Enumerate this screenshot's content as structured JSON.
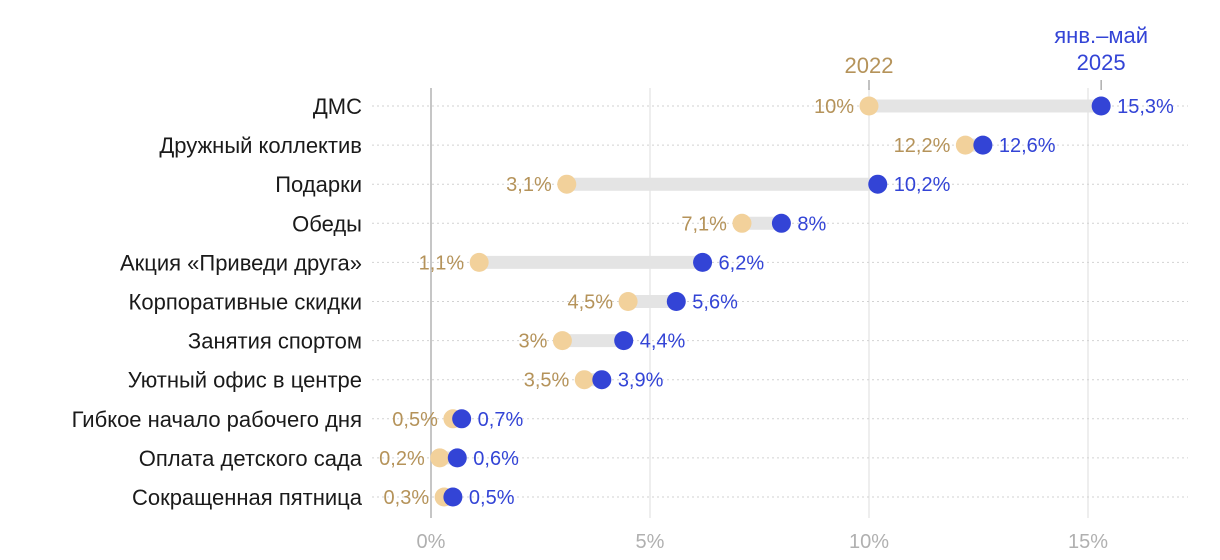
{
  "chart_data": {
    "type": "dumbbell",
    "title": "",
    "xlabel": "",
    "ylabel": "",
    "xlim": [
      0,
      17.5
    ],
    "x_ticks": [
      {
        "value": 0,
        "label": "0%"
      },
      {
        "value": 5,
        "label": "5%"
      },
      {
        "value": 10,
        "label": "10%"
      },
      {
        "value": 15,
        "label": "15%"
      }
    ],
    "grid": true,
    "categories": [
      "ДМС",
      "Дружный коллектив",
      "Подарки",
      "Обеды",
      "Акция «Приведи друга»",
      "Корпоративные скидки",
      "Занятия спортом",
      "Уютный офис в центре",
      "Гибкое начало рабочего дня",
      "Оплата детского сада",
      "Сокращенная пятница"
    ],
    "series": [
      {
        "name": "2022",
        "color": "#f2d19b",
        "label_color": "#b5935a",
        "values": [
          10,
          12.2,
          3.1,
          7.1,
          1.1,
          4.5,
          3,
          3.5,
          0.5,
          0.2,
          0.3
        ],
        "labels": [
          "10%",
          "12,2%",
          "3,1%",
          "7,1%",
          "1,1%",
          "4,5%",
          "3%",
          "3,5%",
          "0,5%",
          "0,2%",
          "0,3%"
        ]
      },
      {
        "name_lines": [
          "янв.–май",
          "2025"
        ],
        "color": "#3344d6",
        "label_color": "#3344d6",
        "values": [
          15.3,
          12.6,
          10.2,
          8,
          6.2,
          5.6,
          4.4,
          3.9,
          0.7,
          0.6,
          0.5
        ],
        "labels": [
          "15,3%",
          "12,6%",
          "10,2%",
          "8%",
          "6,2%",
          "5,6%",
          "4,4%",
          "3,9%",
          "0,7%",
          "0,6%",
          "0,5%"
        ]
      }
    ],
    "series_labels_position": "above first row"
  }
}
